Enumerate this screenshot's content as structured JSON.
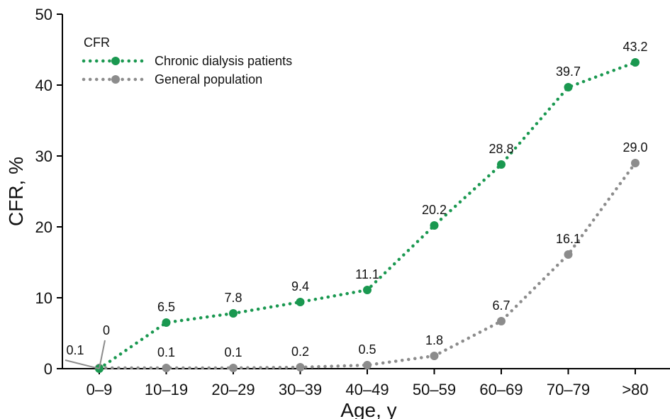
{
  "chart_data": {
    "type": "line",
    "xlabel": "Age, y",
    "ylabel": "CFR, %",
    "ylim": [
      0,
      50
    ],
    "yticks": [
      "0",
      "10",
      "20",
      "30",
      "40",
      "50"
    ],
    "categories": [
      "0–9",
      "10–19",
      "20–29",
      "30–39",
      "40–49",
      "50–59",
      "60–69",
      "70–79",
      ">80"
    ],
    "legend": {
      "title": "CFR",
      "position": "top-left"
    },
    "grid": false,
    "series": [
      {
        "name": "Chronic dialysis patients",
        "color": "#1a9850",
        "values": [
          0,
          6.5,
          7.8,
          9.4,
          11.1,
          20.2,
          28.8,
          39.7,
          43.2
        ],
        "labels": [
          "0",
          "6.5",
          "7.8",
          "9.4",
          "11.1",
          "20.2",
          "28.8",
          "39.7",
          "43.2"
        ]
      },
      {
        "name": "General population",
        "color": "#8c8c8c",
        "values": [
          0.1,
          0.1,
          0.1,
          0.2,
          0.5,
          1.8,
          6.7,
          16.1,
          29.0
        ],
        "labels": [
          "0.1",
          "0.1",
          "0.1",
          "0.2",
          "0.5",
          "1.8",
          "6.7",
          "16.1",
          "29.0"
        ]
      }
    ]
  }
}
